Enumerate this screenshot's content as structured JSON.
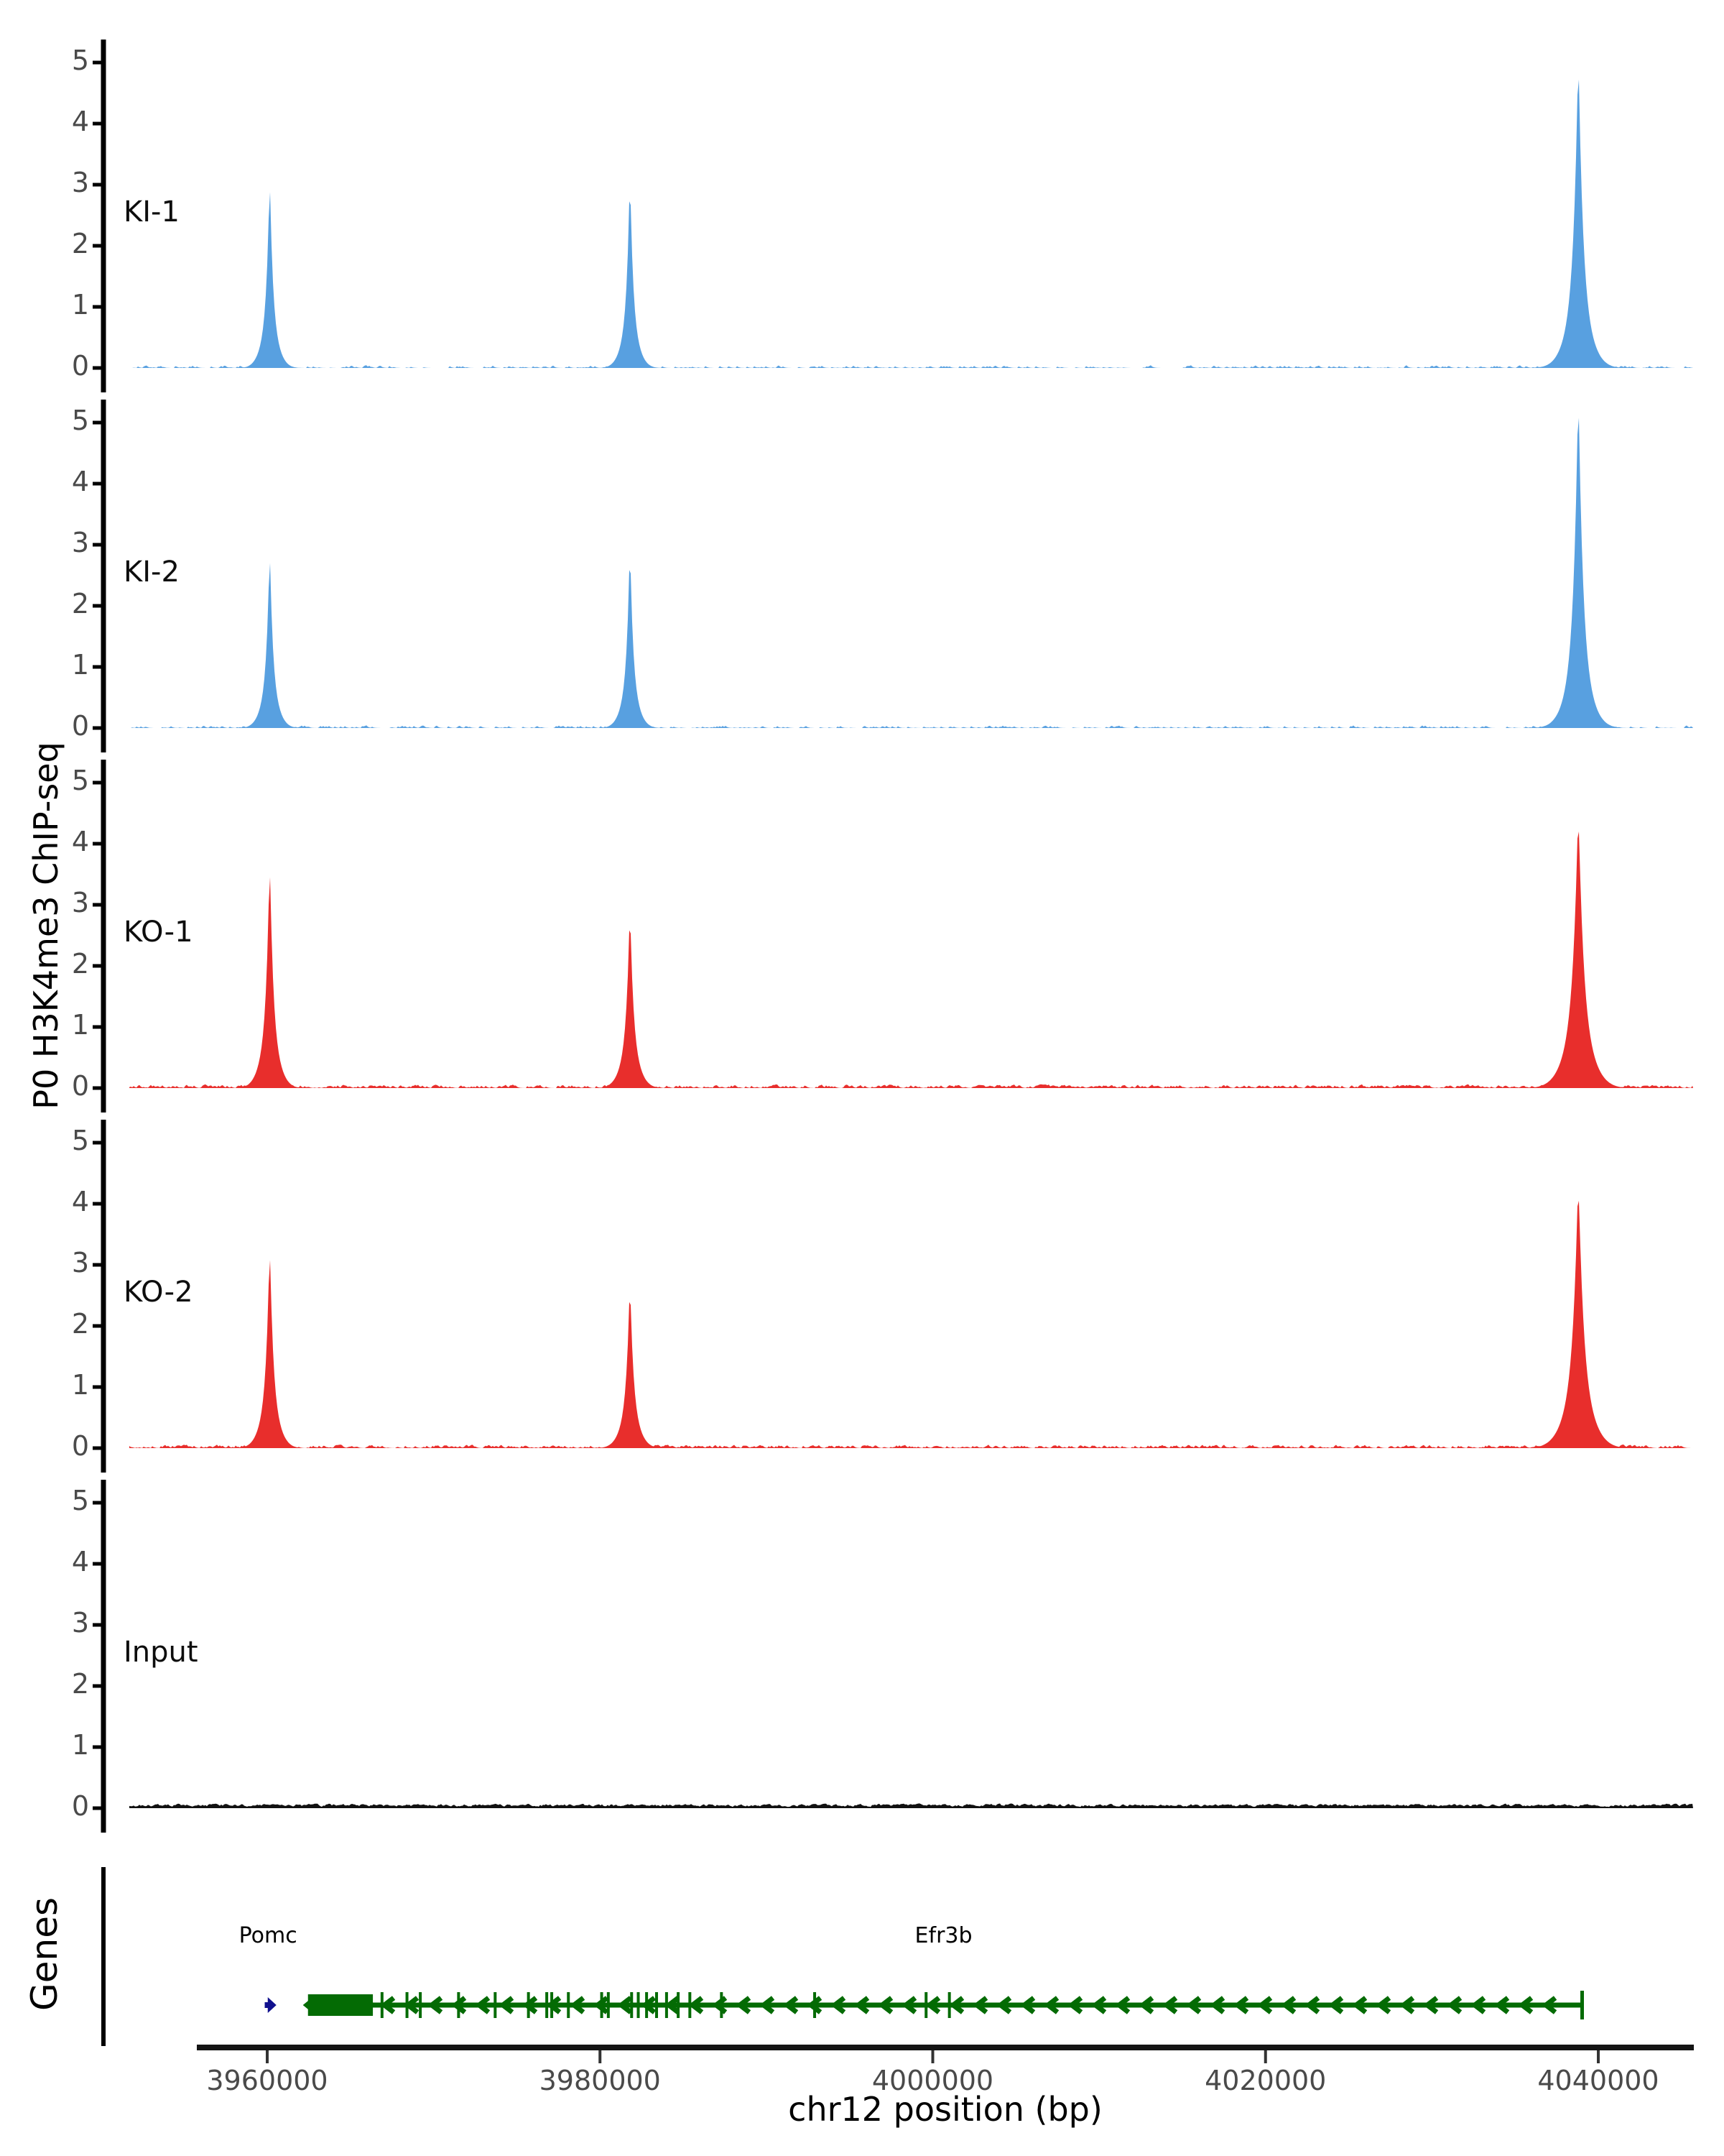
{
  "figure": {
    "background": "#ffffff",
    "ylabel": "P0 H3K4me3 ChIP-seq",
    "xlabel": "chr12 position (bp)",
    "genes_label": "Genes"
  },
  "chart_data": {
    "type": "area",
    "title": "",
    "ylabel": "P0 H3K4me3 ChIP-seq",
    "xlabel": "chr12 position (bp)",
    "grid": false,
    "x_unit": "bp",
    "chromosome": "chr12",
    "x_range": [
      3951700,
      4045700
    ],
    "x_ticks": [
      3960000,
      3980000,
      4000000,
      4020000,
      4040000
    ],
    "y_range": [
      0,
      5.3
    ],
    "y_ticks": [
      0,
      1,
      2,
      3,
      4,
      5
    ],
    "colors": {
      "ki": "#58a0e0",
      "ko": "#e82e2c",
      "input": "#111111",
      "gene_green": "#046b04",
      "gene_navy": "#10108e",
      "axis": "#000000",
      "tick_text": "#4a4a4a"
    },
    "tracks": [
      {
        "label": "KI-1",
        "color": "#58a0e0",
        "seed": 11,
        "noise_amp": 0.05,
        "noise_density": 0.3,
        "peaks": [
          {
            "pos": 3960150,
            "h": 2.88,
            "w": 1.0
          },
          {
            "pos": 3981800,
            "h": 2.9,
            "w": 1.0
          },
          {
            "pos": 4038800,
            "h": 4.75,
            "w": 1.5
          }
        ]
      },
      {
        "label": "KI-2",
        "color": "#58a0e0",
        "seed": 23,
        "noise_amp": 0.05,
        "noise_density": 0.28,
        "peaks": [
          {
            "pos": 3960150,
            "h": 2.7,
            "w": 1.0
          },
          {
            "pos": 3981800,
            "h": 2.75,
            "w": 1.0
          },
          {
            "pos": 4038800,
            "h": 5.15,
            "w": 1.5
          }
        ]
      },
      {
        "label": "KO-1",
        "color": "#e82e2c",
        "seed": 37,
        "noise_amp": 0.06,
        "noise_density": 0.55,
        "peaks": [
          {
            "pos": 3960150,
            "h": 3.45,
            "w": 1.1
          },
          {
            "pos": 3981800,
            "h": 2.7,
            "w": 1.1
          },
          {
            "pos": 4038800,
            "h": 4.2,
            "w": 1.7
          }
        ]
      },
      {
        "label": "KO-2",
        "color": "#e82e2c",
        "seed": 49,
        "noise_amp": 0.06,
        "noise_density": 0.5,
        "peaks": [
          {
            "pos": 3960150,
            "h": 3.08,
            "w": 1.1
          },
          {
            "pos": 3981800,
            "h": 2.5,
            "w": 1.1
          },
          {
            "pos": 4038800,
            "h": 4.05,
            "w": 1.7
          }
        ]
      },
      {
        "label": "Input",
        "color": "#111111",
        "seed": 61,
        "noise_amp": 0.07,
        "noise_density": 1.0,
        "peaks": []
      }
    ],
    "genes_panel": {
      "label": "Genes",
      "genes": [
        {
          "name": "Pomc",
          "strand": "+",
          "glyph": "arrow",
          "color": "#10108e",
          "start": 3959850,
          "end": 3960550,
          "label_pos": 3960050
        },
        {
          "name": "Efr3b",
          "strand": "-",
          "glyph": "gene-model",
          "color": "#046b04",
          "start": 3962350,
          "end": 4039050,
          "thick_box": [
            3962450,
            3966350
          ],
          "exons_bp": [
            3966900,
            3968400,
            3969200,
            3971500,
            3973700,
            3975700,
            3976800,
            3977100,
            3978100,
            3980100,
            3980500,
            3981900,
            3982300,
            3982800,
            3983400,
            3984000,
            3984700,
            3985400,
            3987300,
            3992900,
            3999600,
            4001000
          ],
          "label_pos": 4000650
        }
      ]
    }
  }
}
